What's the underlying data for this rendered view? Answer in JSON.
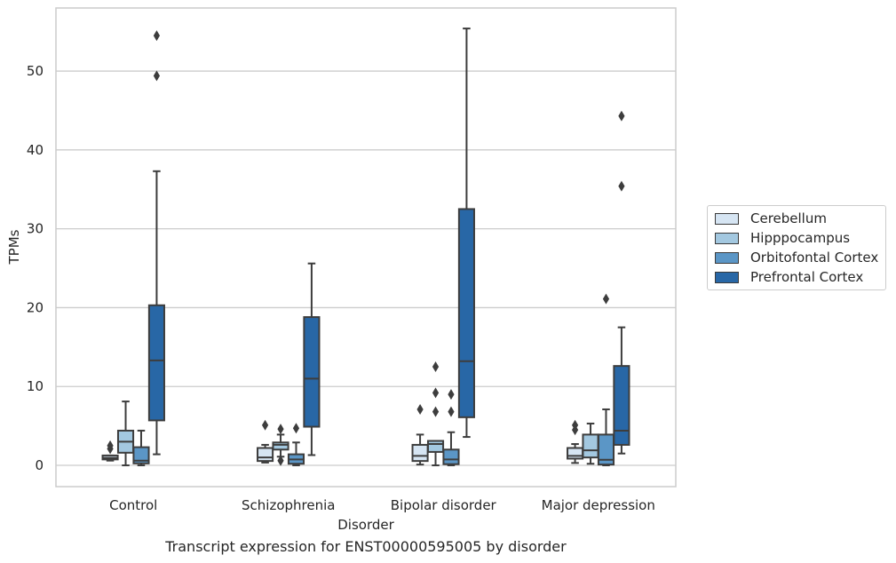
{
  "chart_data": {
    "type": "box",
    "title": "",
    "caption": "Transcript expression for ENST00000595005 by disorder",
    "xlabel": "Disorder",
    "ylabel": "TPMs",
    "ylim": [
      -2.7,
      58.0
    ],
    "yticks": [
      0,
      10,
      20,
      30,
      40,
      50
    ],
    "grid": "horizontal",
    "legend_position": "right",
    "categories": [
      "Control",
      "Schizophrenia",
      "Bipolar disorder",
      "Major depression"
    ],
    "series": [
      {
        "name": "Cerebellum",
        "color": "#d6e5f3",
        "boxes": [
          {
            "whisker_low": 0.6,
            "q1": 0.75,
            "median": 0.95,
            "q3": 1.25,
            "whisker_high": 1.25,
            "outliers": [
              2.1,
              2.5
            ]
          },
          {
            "whisker_low": 0.35,
            "q1": 0.55,
            "median": 1.0,
            "q3": 2.2,
            "whisker_high": 2.6,
            "outliers": [
              5.1
            ]
          },
          {
            "whisker_low": 0.1,
            "q1": 0.55,
            "median": 1.2,
            "q3": 2.6,
            "whisker_high": 3.9,
            "outliers": [
              7.1
            ]
          },
          {
            "whisker_low": 0.3,
            "q1": 0.85,
            "median": 1.2,
            "q3": 2.2,
            "whisker_high": 2.7,
            "outliers": [
              4.5,
              5.1
            ]
          }
        ]
      },
      {
        "name": "Hipppocampus",
        "color": "#a3c8e0",
        "boxes": [
          {
            "whisker_low": 0.0,
            "q1": 1.6,
            "median": 3.0,
            "q3": 4.4,
            "whisker_high": 8.1,
            "outliers": []
          },
          {
            "whisker_low": 1.1,
            "q1": 2.0,
            "median": 2.6,
            "q3": 2.9,
            "whisker_high": 3.9,
            "outliers": [
              0.6,
              4.6
            ]
          },
          {
            "whisker_low": 0.0,
            "q1": 1.7,
            "median": 2.7,
            "q3": 3.1,
            "whisker_high": 3.1,
            "outliers": [
              6.8,
              9.2,
              12.5
            ]
          },
          {
            "whisker_low": 0.2,
            "q1": 1.0,
            "median": 1.9,
            "q3": 3.9,
            "whisker_high": 5.3,
            "outliers": []
          }
        ]
      },
      {
        "name": "Orbitofontal Cortex",
        "color": "#5b96c6",
        "boxes": [
          {
            "whisker_low": 0.0,
            "q1": 0.25,
            "median": 0.6,
            "q3": 2.3,
            "whisker_high": 4.4,
            "outliers": []
          },
          {
            "whisker_low": 0.0,
            "q1": 0.2,
            "median": 0.75,
            "q3": 1.4,
            "whisker_high": 2.9,
            "outliers": [
              4.7
            ]
          },
          {
            "whisker_low": 0.0,
            "q1": 0.15,
            "median": 0.75,
            "q3": 2.0,
            "whisker_high": 4.2,
            "outliers": [
              6.8,
              9.0
            ]
          },
          {
            "whisker_low": 0.0,
            "q1": 0.1,
            "median": 0.7,
            "q3": 3.9,
            "whisker_high": 7.1,
            "outliers": [
              21.1
            ]
          }
        ]
      },
      {
        "name": "Prefrontal Cortex",
        "color": "#2867a6",
        "boxes": [
          {
            "whisker_low": 1.4,
            "q1": 5.7,
            "median": 13.3,
            "q3": 20.3,
            "whisker_high": 37.3,
            "outliers": [
              49.4,
              54.5
            ]
          },
          {
            "whisker_low": 1.3,
            "q1": 4.9,
            "median": 11.0,
            "q3": 18.8,
            "whisker_high": 25.6,
            "outliers": []
          },
          {
            "whisker_low": 3.6,
            "q1": 6.1,
            "median": 13.2,
            "q3": 32.5,
            "whisker_high": 55.4,
            "outliers": []
          },
          {
            "whisker_low": 1.5,
            "q1": 2.6,
            "median": 4.4,
            "q3": 12.6,
            "whisker_high": 17.5,
            "outliers": [
              35.4,
              44.3
            ]
          }
        ]
      }
    ]
  }
}
